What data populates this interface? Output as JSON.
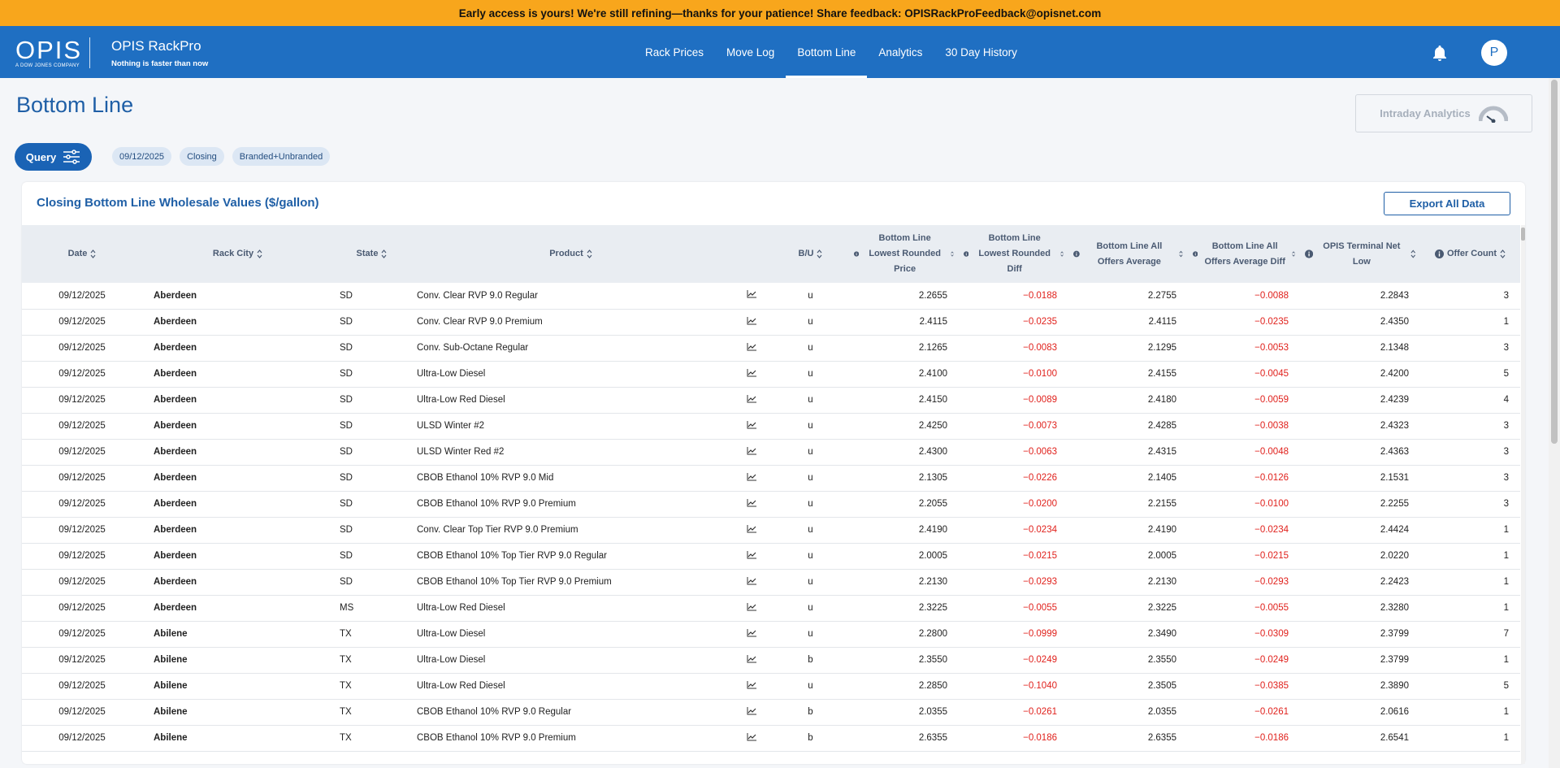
{
  "banner": {
    "text": "Early access is yours! We're still refining—thanks for your patience! Share feedback: OPISRackProFeedback@opisnet.com"
  },
  "header": {
    "logo": "OPIS",
    "logo_sub": "A DOW JONES COMPANY",
    "app_name": "OPIS RackPro",
    "tagline": "Nothing is faster than now",
    "nav": [
      "Rack Prices",
      "Move Log",
      "Bottom Line",
      "Analytics",
      "30 Day History"
    ],
    "active_nav": "Bottom Line",
    "avatar": "P"
  },
  "page": {
    "title": "Bottom Line",
    "intraday_button": "Intraday Analytics",
    "query_button": "Query",
    "chips": [
      "09/12/2025",
      "Closing",
      "Branded+Unbranded"
    ]
  },
  "card": {
    "title": "Closing Bottom Line Wholesale Values ($/gallon)",
    "export_button": "Export All Data"
  },
  "table": {
    "columns": [
      "Date",
      "Rack City",
      "State",
      "Product",
      "B/U",
      "Bottom Line Lowest Rounded Price",
      "Bottom Line Lowest Rounded Diff",
      "Bottom Line All Offers Average",
      "Bottom Line All Offers Average Diff",
      "OPIS Terminal Net Low",
      "Offer Count"
    ],
    "rows": [
      [
        "09/12/2025",
        "Aberdeen",
        "SD",
        "Conv. Clear RVP 9.0 Regular",
        "u",
        "2.2655",
        "−0.0188",
        "2.2755",
        "−0.0088",
        "2.2843",
        "3"
      ],
      [
        "09/12/2025",
        "Aberdeen",
        "SD",
        "Conv. Clear RVP 9.0 Premium",
        "u",
        "2.4115",
        "−0.0235",
        "2.4115",
        "−0.0235",
        "2.4350",
        "1"
      ],
      [
        "09/12/2025",
        "Aberdeen",
        "SD",
        "Conv. Sub-Octane Regular",
        "u",
        "2.1265",
        "−0.0083",
        "2.1295",
        "−0.0053",
        "2.1348",
        "3"
      ],
      [
        "09/12/2025",
        "Aberdeen",
        "SD",
        "Ultra-Low Diesel",
        "u",
        "2.4100",
        "−0.0100",
        "2.4155",
        "−0.0045",
        "2.4200",
        "5"
      ],
      [
        "09/12/2025",
        "Aberdeen",
        "SD",
        "Ultra-Low Red Diesel",
        "u",
        "2.4150",
        "−0.0089",
        "2.4180",
        "−0.0059",
        "2.4239",
        "4"
      ],
      [
        "09/12/2025",
        "Aberdeen",
        "SD",
        "ULSD Winter #2",
        "u",
        "2.4250",
        "−0.0073",
        "2.4285",
        "−0.0038",
        "2.4323",
        "3"
      ],
      [
        "09/12/2025",
        "Aberdeen",
        "SD",
        "ULSD Winter Red #2",
        "u",
        "2.4300",
        "−0.0063",
        "2.4315",
        "−0.0048",
        "2.4363",
        "3"
      ],
      [
        "09/12/2025",
        "Aberdeen",
        "SD",
        "CBOB Ethanol 10% RVP 9.0 Mid",
        "u",
        "2.1305",
        "−0.0226",
        "2.1405",
        "−0.0126",
        "2.1531",
        "3"
      ],
      [
        "09/12/2025",
        "Aberdeen",
        "SD",
        "CBOB Ethanol 10% RVP 9.0 Premium",
        "u",
        "2.2055",
        "−0.0200",
        "2.2155",
        "−0.0100",
        "2.2255",
        "3"
      ],
      [
        "09/12/2025",
        "Aberdeen",
        "SD",
        "Conv. Clear Top Tier RVP 9.0 Premium",
        "u",
        "2.4190",
        "−0.0234",
        "2.4190",
        "−0.0234",
        "2.4424",
        "1"
      ],
      [
        "09/12/2025",
        "Aberdeen",
        "SD",
        "CBOB Ethanol 10% Top Tier RVP 9.0 Regular",
        "u",
        "2.0005",
        "−0.0215",
        "2.0005",
        "−0.0215",
        "2.0220",
        "1"
      ],
      [
        "09/12/2025",
        "Aberdeen",
        "SD",
        "CBOB Ethanol 10% Top Tier RVP 9.0 Premium",
        "u",
        "2.2130",
        "−0.0293",
        "2.2130",
        "−0.0293",
        "2.2423",
        "1"
      ],
      [
        "09/12/2025",
        "Aberdeen",
        "MS",
        "Ultra-Low Red Diesel",
        "u",
        "2.3225",
        "−0.0055",
        "2.3225",
        "−0.0055",
        "2.3280",
        "1"
      ],
      [
        "09/12/2025",
        "Abilene",
        "TX",
        "Ultra-Low Diesel",
        "u",
        "2.2800",
        "−0.0999",
        "2.3490",
        "−0.0309",
        "2.3799",
        "7"
      ],
      [
        "09/12/2025",
        "Abilene",
        "TX",
        "Ultra-Low Diesel",
        "b",
        "2.3550",
        "−0.0249",
        "2.3550",
        "−0.0249",
        "2.3799",
        "1"
      ],
      [
        "09/12/2025",
        "Abilene",
        "TX",
        "Ultra-Low Red Diesel",
        "u",
        "2.2850",
        "−0.1040",
        "2.3505",
        "−0.0385",
        "2.3890",
        "5"
      ],
      [
        "09/12/2025",
        "Abilene",
        "TX",
        "CBOB Ethanol 10% RVP 9.0 Regular",
        "b",
        "2.0355",
        "−0.0261",
        "2.0355",
        "−0.0261",
        "2.0616",
        "1"
      ],
      [
        "09/12/2025",
        "Abilene",
        "TX",
        "CBOB Ethanol 10% RVP 9.0 Premium",
        "b",
        "2.6355",
        "−0.0186",
        "2.6355",
        "−0.0186",
        "2.6541",
        "1"
      ]
    ]
  }
}
